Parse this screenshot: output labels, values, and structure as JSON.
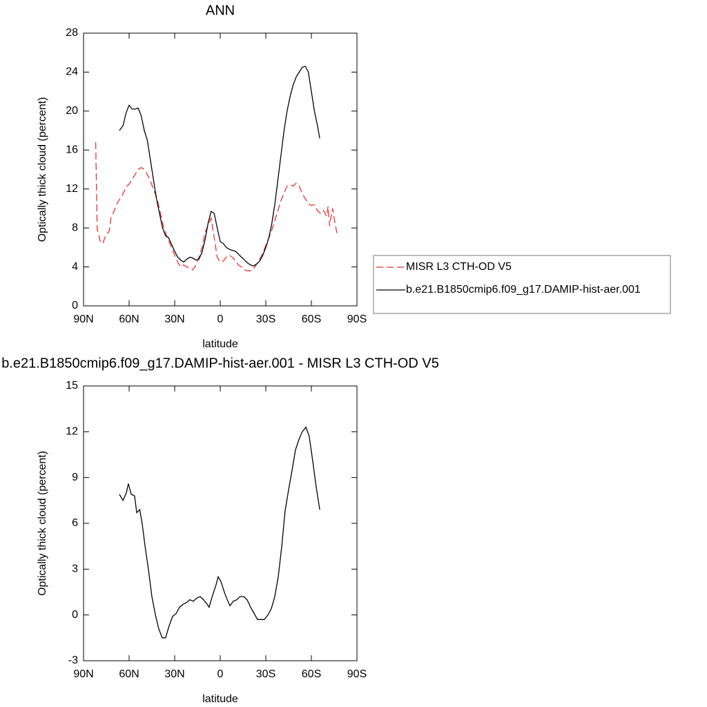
{
  "chart_data": [
    {
      "type": "line",
      "title": "ANN",
      "xlabel": "latitude",
      "ylabel": "Optically thick cloud (percent)",
      "xlim": [
        90,
        -90
      ],
      "xticks": [
        {
          "value": 90,
          "label": "90N"
        },
        {
          "value": 60,
          "label": "60N"
        },
        {
          "value": 30,
          "label": "30N"
        },
        0,
        {
          "value": -30,
          "label": "30S"
        },
        {
          "value": -60,
          "label": "60S"
        },
        {
          "value": -90,
          "label": "90S"
        }
      ],
      "ylim": [
        0,
        28
      ],
      "yticks": [
        0,
        4,
        8,
        12,
        16,
        20,
        24,
        28
      ],
      "series": [
        {
          "name": "MISR L3 CTH-OD V5",
          "color": "#e8312e",
          "line_style": "dashed",
          "x": [
            82,
            81,
            80,
            79,
            78,
            77,
            76,
            75,
            73,
            72,
            70,
            68,
            66,
            64,
            62,
            60,
            58,
            56,
            54,
            52,
            50,
            48,
            46,
            44,
            42,
            40,
            38,
            36,
            34,
            32,
            30,
            28,
            26,
            24,
            22,
            20,
            18,
            16,
            14,
            12,
            10,
            8,
            6,
            4,
            2,
            0,
            -2,
            -4,
            -6,
            -8,
            -10,
            -12,
            -14,
            -16,
            -18,
            -20,
            -22,
            -24,
            -26,
            -28,
            -30,
            -32,
            -34,
            -36,
            -38,
            -40,
            -42,
            -44,
            -46,
            -48,
            -50,
            -52,
            -54,
            -56,
            -58,
            -60,
            -62,
            -64,
            -66,
            -68,
            -70,
            -71,
            -72,
            -73,
            -74,
            -75,
            -77
          ],
          "values": [
            16.8,
            7.8,
            7.4,
            6.6,
            6.4,
            6.5,
            7,
            7.3,
            7.7,
            9,
            9.7,
            10.5,
            11,
            11.5,
            12.2,
            12.5,
            13,
            13.5,
            14,
            14.2,
            14,
            13.5,
            12.8,
            12,
            11.2,
            10,
            8.5,
            7.5,
            6.7,
            6,
            5.2,
            4.5,
            4,
            4.2,
            4,
            3.8,
            3.7,
            4.2,
            5,
            6,
            7.5,
            8.3,
            9.0,
            7.0,
            5,
            4.5,
            4.6,
            5,
            5.2,
            5,
            4.6,
            4.2,
            4,
            3.7,
            3.6,
            3.6,
            3.8,
            4.3,
            4.8,
            5.4,
            6.2,
            7,
            7.8,
            8.8,
            9.8,
            10.8,
            11.6,
            12.3,
            12.4,
            12.3,
            12.6,
            12.3,
            11.5,
            11,
            10.5,
            10.3,
            10.4,
            9.8,
            9.5,
            9.8,
            9.2,
            10.2,
            8.2,
            9.2,
            10,
            9,
            7.3
          ]
        },
        {
          "name": "b.e21.B1850cmip6.f09_g17.DAMIP-hist-aer.001",
          "color": "#000000",
          "line_style": "solid",
          "x": [
            66.4,
            64,
            62,
            60,
            58,
            56,
            54,
            52,
            50,
            48,
            46,
            44,
            42,
            40,
            38,
            36,
            34,
            32,
            30,
            28,
            26,
            24,
            22,
            20,
            18,
            16,
            14,
            12,
            10,
            8,
            6,
            4,
            2,
            0,
            -2,
            -4,
            -6,
            -8,
            -10,
            -12,
            -14,
            -16,
            -18,
            -20,
            -22,
            -24,
            -26,
            -28,
            -30,
            -32,
            -34,
            -36,
            -38,
            -40,
            -42,
            -44,
            -46,
            -48,
            -50,
            -52,
            -54,
            -56,
            -58,
            -60,
            -62,
            -64,
            -65.5
          ],
          "values": [
            18.0,
            18.5,
            19.8,
            20.6,
            20.2,
            20.2,
            20.3,
            19.5,
            18,
            17,
            15,
            13,
            11,
            9.5,
            8,
            7.2,
            7,
            6.3,
            5.6,
            5.0,
            4.7,
            4.5,
            4.8,
            5,
            4.9,
            4.7,
            4.8,
            5.5,
            6.8,
            8.5,
            9.7,
            9.5,
            8,
            6.6,
            6.4,
            6.0,
            5.8,
            5.7,
            5.6,
            5.3,
            5.0,
            4.7,
            4.4,
            4.2,
            4.1,
            4.3,
            4.6,
            5.2,
            6,
            7,
            8.5,
            10.5,
            13,
            15.5,
            18,
            20,
            21.5,
            22.7,
            23.5,
            24,
            24.5,
            24.6,
            24,
            22,
            20,
            18.5,
            17.2
          ]
        }
      ]
    },
    {
      "type": "line",
      "title": "b.e21.B1850cmip6.f09_g17.DAMIP-hist-aer.001 - MISR L3 CTH-OD V5",
      "xlabel": "latitude",
      "ylabel": "Optically thick cloud (percent)",
      "xlim": [
        90,
        -90
      ],
      "xticks": [
        {
          "value": 90,
          "label": "90N"
        },
        {
          "value": 60,
          "label": "60N"
        },
        {
          "value": 30,
          "label": "30N"
        },
        0,
        {
          "value": -30,
          "label": "30S"
        },
        {
          "value": -60,
          "label": "60S"
        },
        {
          "value": -90,
          "label": "90S"
        }
      ],
      "ylim": [
        -3,
        15
      ],
      "yticks": [
        -3,
        0,
        3,
        6,
        9,
        12,
        15
      ],
      "series": [
        {
          "color": "#000000",
          "line_style": "solid",
          "x": [
            66.4,
            64,
            61.8,
            60.5,
            58.6,
            56.4,
            55,
            53,
            51.4,
            49.5,
            47.3,
            45,
            42.7,
            40.5,
            38.2,
            36,
            33.6,
            31.4,
            29,
            26.8,
            24.5,
            22.3,
            20,
            17.7,
            15.5,
            13.2,
            11,
            8.6,
            7.3,
            5,
            2.7,
            1.4,
            -0.4,
            -2.7,
            -5,
            -6.4,
            -8.6,
            -11,
            -13,
            -15.5,
            -17.7,
            -20,
            -22.3,
            -24.5,
            -26.8,
            -29,
            -31.4,
            -33.6,
            -35.9,
            -38.2,
            -40.5,
            -42.7,
            -45,
            -47.3,
            -49.5,
            -51.8,
            -54,
            -56.4,
            -58.6,
            -61,
            -63,
            -65.5
          ],
          "values": [
            7.9,
            7.5,
            8,
            8.6,
            7.9,
            7.8,
            6.7,
            6.9,
            6,
            4.5,
            3,
            1.2,
            0,
            -0.9,
            -1.5,
            -1.5,
            -0.7,
            -0.1,
            0.1,
            0.5,
            0.7,
            0.8,
            1.0,
            0.9,
            1.1,
            1.2,
            1.0,
            0.7,
            0.5,
            1.3,
            2.0,
            2.5,
            2.2,
            1.5,
            0.9,
            0.6,
            0.9,
            1.0,
            1.2,
            1.2,
            1.0,
            0.5,
            0.1,
            -0.3,
            -0.3,
            -0.3,
            0,
            0.4,
            1.2,
            2.5,
            4.5,
            6.8,
            8.2,
            9.5,
            10.8,
            11.5,
            12,
            12.3,
            11.7,
            10,
            8.5,
            6.9
          ]
        }
      ]
    }
  ]
}
